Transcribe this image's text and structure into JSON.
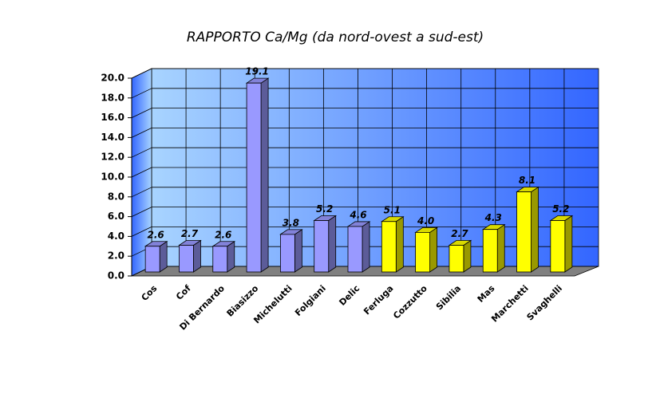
{
  "chart_data": {
    "type": "bar3d",
    "title": "RAPPORTO Ca/Mg (da nord-ovest a sud-est)",
    "categories": [
      "Cos",
      "Cof",
      "Di Bernardo",
      "Biasizzo",
      "Michelutti",
      "Folgiani",
      "Delic",
      "Ferluga",
      "Cozzutto",
      "Sibilia",
      "Mas",
      "Marchetti",
      "Svaghelli"
    ],
    "values": [
      2.6,
      2.7,
      2.6,
      19.1,
      3.8,
      5.2,
      4.6,
      5.1,
      4.0,
      2.7,
      4.3,
      8.1,
      5.2
    ],
    "value_labels": [
      "2.6",
      "2.7",
      "2.6",
      "19.1",
      "3.8",
      "5.2",
      "4.6",
      "5.1",
      "4.0",
      "2.7",
      "4.3",
      "8.1",
      "5.2"
    ],
    "colors": [
      "#9999ff",
      "#9999ff",
      "#9999ff",
      "#9999ff",
      "#9999ff",
      "#9999ff",
      "#9999ff",
      "#ffff00",
      "#ffff00",
      "#ffff00",
      "#ffff00",
      "#ffff00",
      "#ffff00"
    ],
    "ylim": [
      0,
      20
    ],
    "yticks": [
      {
        "value": 0,
        "label": "0.0"
      },
      {
        "value": 2,
        "label": "2.0"
      },
      {
        "value": 4,
        "label": "4.0"
      },
      {
        "value": 6,
        "label": "6.0"
      },
      {
        "value": 8,
        "label": "8.0"
      },
      {
        "value": 10,
        "label": "10.0"
      },
      {
        "value": 12,
        "label": "12.0"
      },
      {
        "value": 14,
        "label": "14.0"
      },
      {
        "value": 16,
        "label": "16.0"
      },
      {
        "value": 18,
        "label": "18.0"
      },
      {
        "value": 20,
        "label": "20.0"
      }
    ],
    "grid": true
  }
}
